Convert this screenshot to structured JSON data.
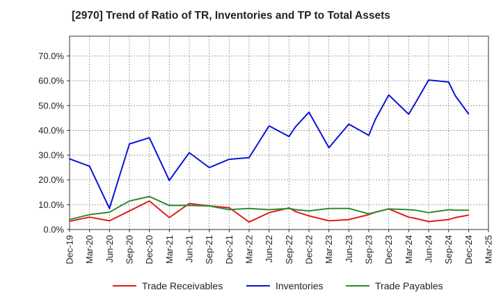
{
  "chart_data": {
    "type": "line",
    "title": "[2970]  Trend of Ratio of TR, Inventories and TP to Total Assets",
    "xlabel": "",
    "ylabel": "",
    "ylim": [
      0,
      78
    ],
    "yticks": [
      "0.0%",
      "10.0%",
      "20.0%",
      "30.0%",
      "40.0%",
      "50.0%",
      "60.0%",
      "70.0%"
    ],
    "xticks": [
      "Dec-19",
      "Mar-20",
      "Jun-20",
      "Sep-20",
      "Dec-20",
      "Mar-21",
      "Jun-21",
      "Sep-21",
      "Dec-21",
      "Mar-22",
      "Jun-22",
      "Sep-22",
      "Dec-22",
      "Mar-23",
      "Jun-23",
      "Sep-23",
      "Dec-23",
      "Mar-24",
      "Jun-24",
      "Sep-24",
      "Dec-24",
      "Mar-25"
    ],
    "grid": true,
    "legend_position": "bottom",
    "x": [
      "Dec-19",
      "Mar-20",
      "Jun-20",
      "Sep-20",
      "Dec-20",
      "Mar-21",
      "Jun-21",
      "Sep-21",
      "Dec-21",
      "Mar-22",
      "Jun-22",
      "Sep-22",
      "Oct-22",
      "Dec-22",
      "Mar-23",
      "Jun-23",
      "Sep-23",
      "Oct-23",
      "Dec-23",
      "Mar-24",
      "Apr-24",
      "Jun-24",
      "Sep-24",
      "Oct-24",
      "Dec-24"
    ],
    "series": [
      {
        "name": "Trade Receivables",
        "color": "#e31a1c",
        "values": [
          3.3,
          5.0,
          3.5,
          7.5,
          11.5,
          4.8,
          10.5,
          9.5,
          8.8,
          3.0,
          6.8,
          8.7,
          7.2,
          5.5,
          3.5,
          4.0,
          6.0,
          7.0,
          8.3,
          5.0,
          4.5,
          3.2,
          4.0,
          4.8,
          5.8
        ]
      },
      {
        "name": "Inventories",
        "color": "#0a14d4",
        "values": [
          28.5,
          25.5,
          8.5,
          34.5,
          37.0,
          19.8,
          31.0,
          25.0,
          28.3,
          29.0,
          41.8,
          37.5,
          41.5,
          47.3,
          33.0,
          42.5,
          38.0,
          44.5,
          54.3,
          46.5,
          51.0,
          60.3,
          59.5,
          54.0,
          46.7
        ]
      },
      {
        "name": "Trade Payables",
        "color": "#2e8b2e",
        "values": [
          4.0,
          6.0,
          7.0,
          11.5,
          13.3,
          9.7,
          9.7,
          9.5,
          8.0,
          8.5,
          8.0,
          8.5,
          8.0,
          7.5,
          8.5,
          8.5,
          6.3,
          7.0,
          8.3,
          8.0,
          7.8,
          6.8,
          8.0,
          7.8,
          7.8
        ]
      }
    ]
  }
}
